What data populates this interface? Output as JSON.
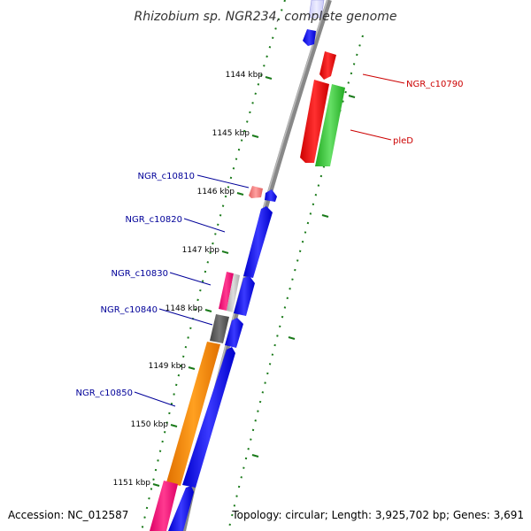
{
  "title": "Rhizobium sp. NGR234, complete genome",
  "footer": {
    "accession": "Accession: NC_012587",
    "topology": "Topology: circular; Length: 3,925,702 bp; Genes: 3,691"
  },
  "ticks": [
    "1144 kbp",
    "1145 kbp",
    "1146 kbp",
    "1147 kbp",
    "1148 kbp",
    "1149 kbp",
    "1150 kbp",
    "1151 kbp"
  ],
  "gene_labels": {
    "c10790": "NGR_c10790",
    "pleD": "pleD",
    "c10810": "NGR_c10810",
    "c10820": "NGR_c10820",
    "c10830": "NGR_c10830",
    "c10840": "NGR_c10840",
    "c10850": "NGR_c10850"
  },
  "colors": {
    "forward": "#0000ee",
    "reverse_label": "#cc0000",
    "forward_label": "#000099",
    "ruler": "#1a7a1a",
    "backbone": "#888888"
  }
}
